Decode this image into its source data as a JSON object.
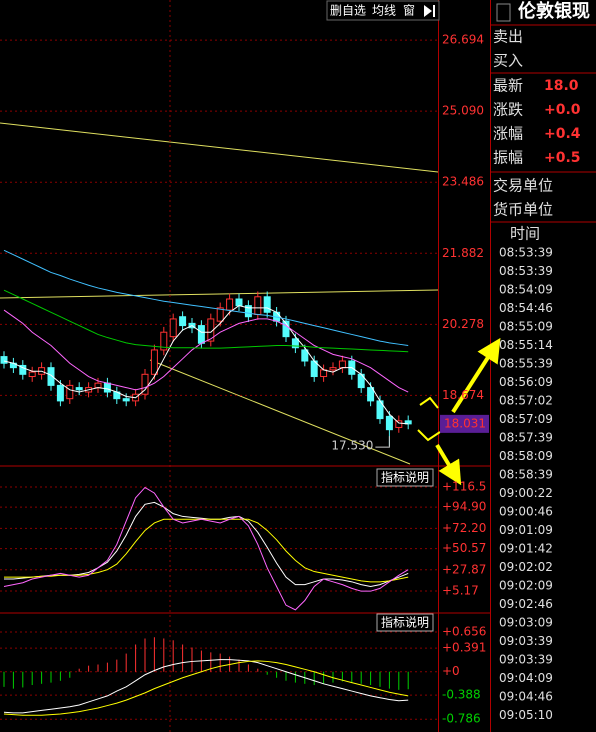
{
  "chart_data": [
    {
      "type": "candlestick",
      "open": [
        19.55,
        19.4,
        19.35,
        19.1,
        19.15,
        19.3,
        18.9,
        18.6,
        18.85,
        18.75,
        18.85,
        18.95,
        18.75,
        18.6,
        18.55,
        18.7,
        19.15,
        19.7,
        20.0,
        20.45,
        20.3,
        20.25,
        19.9,
        20.35,
        20.6,
        20.85,
        20.7,
        20.5,
        20.9,
        20.55,
        20.35,
        19.95,
        19.7,
        19.45,
        19.1,
        19.25,
        19.3,
        19.45,
        19.15,
        18.85,
        18.55,
        18.2,
        17.95,
        18.1
      ],
      "high": [
        19.67,
        19.52,
        19.47,
        19.32,
        19.42,
        19.42,
        19.02,
        19.02,
        18.97,
        18.97,
        19.07,
        19.07,
        18.87,
        18.72,
        18.82,
        19.27,
        19.82,
        20.22,
        20.52,
        20.57,
        20.42,
        20.37,
        20.52,
        20.77,
        20.97,
        20.97,
        20.82,
        21.02,
        21.02,
        20.67,
        20.47,
        20.07,
        19.82,
        19.57,
        19.37,
        19.42,
        19.57,
        19.57,
        19.27,
        18.97,
        18.67,
        18.32,
        18.22,
        18.22
      ],
      "low": [
        19.28,
        19.18,
        19.03,
        18.98,
        19.03,
        18.78,
        18.43,
        18.48,
        18.68,
        18.63,
        18.73,
        18.63,
        18.48,
        18.43,
        18.43,
        18.58,
        19.03,
        19.58,
        19.88,
        20.13,
        20.08,
        19.73,
        19.78,
        20.23,
        20.48,
        20.58,
        20.33,
        20.38,
        20.43,
        20.23,
        19.88,
        19.63,
        19.33,
        18.98,
        18.98,
        19.13,
        19.18,
        19.03,
        18.73,
        18.43,
        18.03,
        17.53,
        17.83,
        17.91
      ],
      "close": [
        19.4,
        19.3,
        19.15,
        19.2,
        19.3,
        18.9,
        18.55,
        18.9,
        18.8,
        18.85,
        18.95,
        18.75,
        18.6,
        18.55,
        18.7,
        19.15,
        19.7,
        20.1,
        20.4,
        20.25,
        20.2,
        19.85,
        20.4,
        20.65,
        20.85,
        20.7,
        20.45,
        20.9,
        20.55,
        20.35,
        20.0,
        19.75,
        19.45,
        19.1,
        19.25,
        19.3,
        19.45,
        19.15,
        18.85,
        18.55,
        18.15,
        17.9,
        18.1,
        18.031
      ],
      "up_color": "#ff3232",
      "down_color": "#54fcfc",
      "series": [
        {
          "color": "#ffffff",
          "values": [
            19.45,
            19.4,
            19.3,
            19.22,
            19.22,
            19.13,
            18.95,
            18.8,
            18.75,
            18.8,
            18.85,
            18.82,
            18.75,
            18.65,
            18.62,
            18.8,
            19.1,
            19.5,
            19.9,
            20.15,
            20.25,
            20.1,
            20.1,
            20.3,
            20.55,
            20.7,
            20.65,
            20.65,
            20.65,
            20.55,
            20.3,
            20.0,
            19.75,
            19.45,
            19.25,
            19.2,
            19.3,
            19.3,
            19.15,
            18.9,
            18.55,
            18.25,
            18.05,
            18.03
          ]
        },
        {
          "color": "#ff66ff",
          "values": [
            20.6,
            20.45,
            20.3,
            20.1,
            19.95,
            19.8,
            19.6,
            19.4,
            19.25,
            19.1,
            19.0,
            18.95,
            18.9,
            18.85,
            18.8,
            18.85,
            18.95,
            19.1,
            19.3,
            19.5,
            19.7,
            19.85,
            19.95,
            20.1,
            20.2,
            20.3,
            20.35,
            20.4,
            20.4,
            20.35,
            20.25,
            20.1,
            19.95,
            19.8,
            19.7,
            19.6,
            19.55,
            19.5,
            19.4,
            19.3,
            19.15,
            19.0,
            18.85,
            18.75
          ]
        },
        {
          "color": "#00c800",
          "values": [
            21.05,
            20.95,
            20.85,
            20.75,
            20.65,
            20.55,
            20.45,
            20.35,
            20.25,
            20.15,
            20.05,
            19.98,
            19.92,
            19.86,
            19.82,
            19.8,
            19.78,
            19.76,
            19.75,
            19.75,
            19.75,
            19.74,
            19.74,
            19.74,
            19.75,
            19.76,
            19.77,
            19.78,
            19.79,
            19.8,
            19.8,
            19.79,
            19.78,
            19.76,
            19.75,
            19.74,
            19.73,
            19.72,
            19.71,
            19.7,
            19.69,
            19.68,
            19.67,
            19.66
          ]
        },
        {
          "color": "#40c0ff",
          "values": [
            21.95,
            21.85,
            21.75,
            21.65,
            21.55,
            21.45,
            21.38,
            21.3,
            21.23,
            21.16,
            21.1,
            21.05,
            21.0,
            20.96,
            20.92,
            20.88,
            20.84,
            20.8,
            20.77,
            20.74,
            20.71,
            20.68,
            20.65,
            20.62,
            20.59,
            20.56,
            20.53,
            20.5,
            20.48,
            20.44,
            20.4,
            20.35,
            20.3,
            20.25,
            20.2,
            20.15,
            20.1,
            20.05,
            20.0,
            19.95,
            19.9,
            19.86,
            19.83,
            19.8
          ]
        }
      ],
      "ylim": [
        17.08,
        27.6
      ],
      "yticks": [
        26.694,
        {
          "value": 25.09,
          "label": "25.090"
        },
        23.486,
        21.882,
        20.278,
        18.674
      ],
      "grid": true,
      "low_label": "17.530",
      "last_label": "18.031"
    },
    {
      "type": "line",
      "button": "指标说明",
      "series": [
        {
          "color": "#ffffff",
          "values": [
            18,
            18,
            19,
            20,
            21,
            22,
            22,
            22,
            23,
            25,
            30,
            36,
            48,
            65,
            85,
            98,
            100,
            95,
            88,
            85,
            84,
            83,
            82,
            82,
            84,
            85,
            80,
            68,
            52,
            35,
            20,
            12,
            12,
            15,
            18,
            18,
            17,
            15,
            12,
            10,
            12,
            16,
            20,
            24
          ]
        },
        {
          "color": "#ffff00",
          "values": [
            20,
            20,
            20,
            20,
            21,
            21,
            22,
            22,
            22,
            23,
            25,
            28,
            34,
            45,
            58,
            70,
            78,
            82,
            82,
            82,
            82,
            82,
            82,
            82,
            82,
            82,
            82,
            78,
            70,
            60,
            48,
            38,
            30,
            26,
            24,
            22,
            20,
            18,
            16,
            15,
            15,
            16,
            18,
            20
          ]
        },
        {
          "color": "#ff66ff",
          "values": [
            10,
            12,
            14,
            18,
            20,
            22,
            24,
            22,
            20,
            22,
            30,
            38,
            55,
            80,
            105,
            116,
            110,
            95,
            82,
            78,
            80,
            82,
            80,
            78,
            82,
            85,
            75,
            55,
            30,
            10,
            -10,
            -15,
            -5,
            10,
            18,
            15,
            12,
            8,
            5,
            5,
            8,
            15,
            22,
            28
          ]
        }
      ],
      "ylim": [
        -17.3,
        134.7
      ],
      "yticks": [
        {
          "value": 116.5,
          "label": "+116.5"
        },
        {
          "value": 94.9,
          "label": "+94.90"
        },
        {
          "value": 72.2,
          "label": "+72.20"
        },
        {
          "value": 50.57,
          "label": "+50.57"
        },
        {
          "value": 27.87,
          "label": "+27.87"
        },
        {
          "value": 5.17,
          "label": "+5.17"
        }
      ],
      "grid": true
    },
    {
      "type": "bar",
      "button": "指标说明",
      "values": [
        -0.25,
        -0.28,
        -0.26,
        -0.22,
        -0.2,
        -0.18,
        -0.15,
        -0.1,
        0.05,
        0.1,
        0.12,
        0.15,
        0.2,
        0.3,
        0.45,
        0.55,
        0.57,
        0.55,
        0.52,
        0.45,
        0.4,
        0.35,
        0.32,
        0.3,
        0.25,
        0.2,
        0.12,
        0.05,
        -0.05,
        -0.1,
        -0.15,
        -0.18,
        -0.2,
        -0.22,
        -0.2,
        -0.18,
        -0.16,
        -0.18,
        -0.2,
        -0.22,
        -0.25,
        -0.28,
        -0.3,
        -0.29
      ],
      "up_color": "#ff3232",
      "down_color": "#00d000",
      "series": [
        {
          "color": "#ffffff",
          "values": [
            -0.67,
            -0.68,
            -0.68,
            -0.66,
            -0.64,
            -0.62,
            -0.6,
            -0.58,
            -0.55,
            -0.5,
            -0.45,
            -0.4,
            -0.32,
            -0.25,
            -0.15,
            -0.05,
            0.02,
            0.08,
            0.12,
            0.15,
            0.17,
            0.18,
            0.19,
            0.2,
            0.2,
            0.19,
            0.18,
            0.15,
            0.1,
            0.05,
            0.0,
            -0.05,
            -0.1,
            -0.15,
            -0.2,
            -0.24,
            -0.28,
            -0.32,
            -0.36,
            -0.4,
            -0.43,
            -0.46,
            -0.48,
            -0.47
          ]
        },
        {
          "color": "#ffff00",
          "values": [
            -0.7,
            -0.71,
            -0.72,
            -0.72,
            -0.72,
            -0.71,
            -0.7,
            -0.68,
            -0.66,
            -0.63,
            -0.6,
            -0.56,
            -0.52,
            -0.47,
            -0.41,
            -0.35,
            -0.28,
            -0.22,
            -0.16,
            -0.1,
            -0.05,
            0.0,
            0.05,
            0.09,
            0.12,
            0.15,
            0.17,
            0.18,
            0.17,
            0.15,
            0.12,
            0.08,
            0.04,
            0.0,
            -0.05,
            -0.1,
            -0.14,
            -0.18,
            -0.22,
            -0.26,
            -0.3,
            -0.34,
            -0.37,
            -0.4
          ]
        }
      ],
      "ylim": [
        -0.997,
        0.938
      ],
      "yticks": [
        {
          "value": 0.656,
          "label": "+0.656"
        },
        {
          "value": 0.391,
          "label": "+0.391"
        },
        {
          "value": 0,
          "label": "+0"
        },
        -0.388,
        -0.786
      ],
      "grid": true
    }
  ],
  "toolbar": [
    "删自选",
    "均线",
    "窗"
  ],
  "quote": {
    "title": "伦敦银现",
    "rows": [
      {
        "label": "卖出"
      },
      {
        "label": "买入"
      },
      {
        "label": "最新",
        "value": "18.0"
      },
      {
        "label": "涨跌",
        "value": "+0.0"
      },
      {
        "label": "涨幅",
        "value": "+0.4"
      },
      {
        "label": "振幅",
        "value": "+0.5"
      },
      {
        "label": "交易单位"
      },
      {
        "label": "货币单位"
      }
    ],
    "time_header": "时间",
    "times": [
      "08:53:39",
      "08:53:39",
      "08:54:09",
      "08:54:46",
      "08:55:09",
      "08:55:14",
      "08:55:39",
      "08:56:09",
      "08:57:02",
      "08:57:09",
      "08:57:39",
      "08:58:09",
      "08:58:39",
      "09:00:22",
      "09:00:46",
      "09:01:09",
      "09:01:42",
      "09:02:02",
      "09:02:09",
      "09:02:46",
      "09:03:09",
      "09:03:39",
      "09:03:39",
      "09:04:09",
      "09:04:46",
      "09:05:10"
    ]
  }
}
